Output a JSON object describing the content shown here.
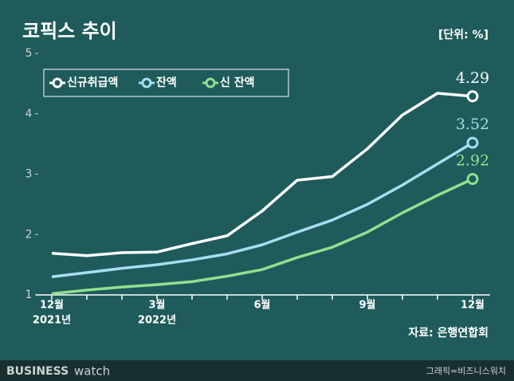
{
  "chart_data": {
    "type": "line",
    "title": "코픽스 추이",
    "unit_label": "[단위: %]",
    "source": "자료: 은행연합회",
    "categories": [
      "12월",
      null,
      null,
      "3월",
      null,
      null,
      "6월",
      null,
      null,
      "9월",
      null,
      null,
      "12월"
    ],
    "category_years": [
      "2021년",
      null,
      null,
      "2022년",
      null,
      null,
      null,
      null,
      null,
      null,
      null,
      null,
      null
    ],
    "series": [
      {
        "name": "신규취급액",
        "color": "#ffffff",
        "values": [
          1.69,
          1.65,
          1.7,
          1.71,
          1.85,
          1.98,
          2.39,
          2.9,
          2.96,
          3.42,
          3.98,
          4.34,
          4.29
        ]
      },
      {
        "name": "잔액",
        "color": "#a8dcf0",
        "values": [
          1.3,
          1.37,
          1.44,
          1.5,
          1.58,
          1.68,
          1.83,
          2.04,
          2.24,
          2.5,
          2.82,
          3.17,
          3.52
        ]
      },
      {
        "name": "신 잔액",
        "color": "#8fe08f",
        "values": [
          1.02,
          1.08,
          1.13,
          1.17,
          1.22,
          1.31,
          1.42,
          1.62,
          1.79,
          2.04,
          2.36,
          2.65,
          2.92
        ]
      }
    ],
    "ylim": [
      1,
      5
    ],
    "yticks": [
      1,
      2,
      3,
      4,
      5
    ],
    "legend": "top-left"
  },
  "footer": {
    "brand": "BUSINESS",
    "brand_suffix": "watch",
    "credit": "그래픽=비즈니스워치"
  }
}
